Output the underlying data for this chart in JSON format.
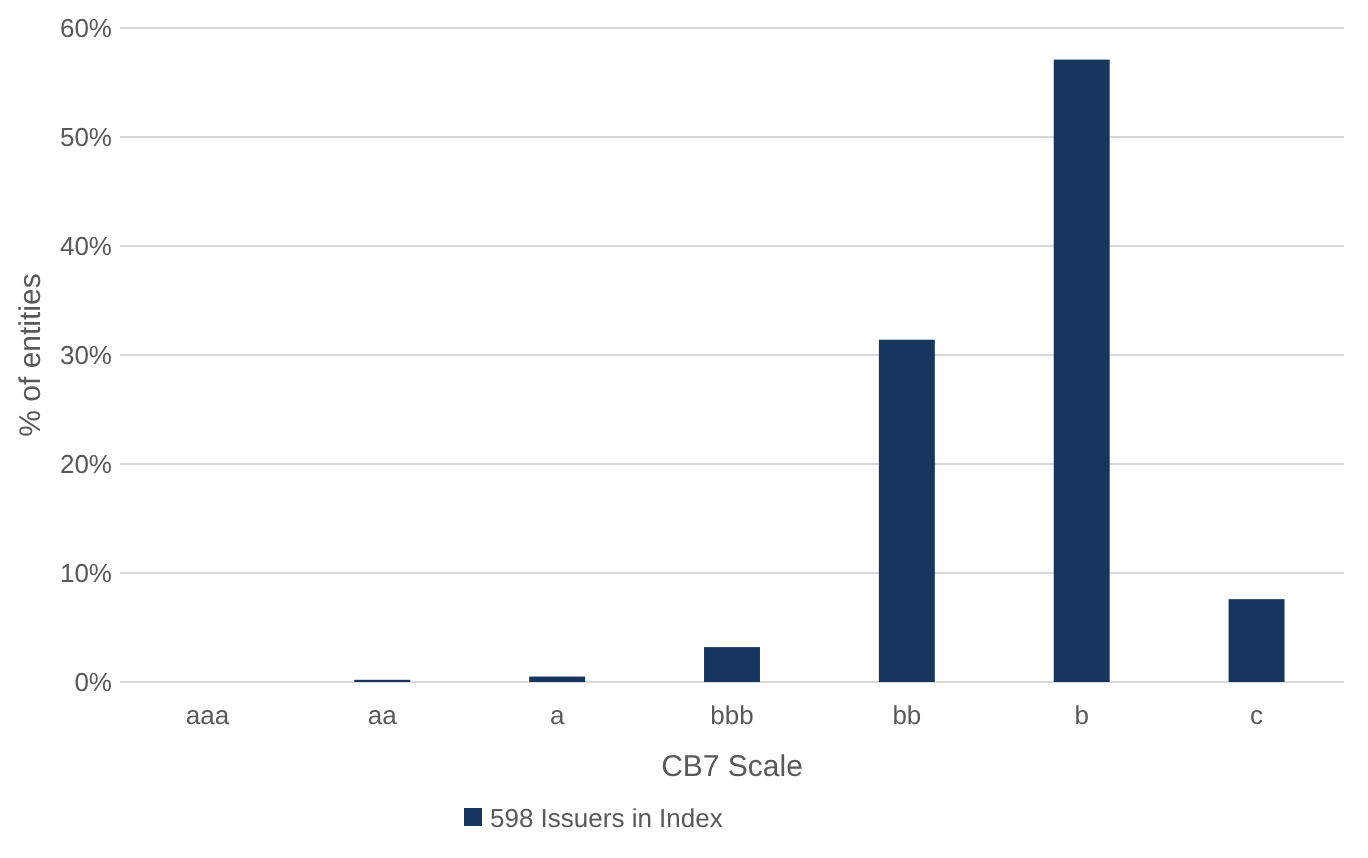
{
  "chart_data": {
    "type": "bar",
    "xlabel": "CB7 Scale",
    "ylabel": "% of entities",
    "categories": [
      "aaa",
      "aa",
      "a",
      "bbb",
      "bb",
      "b",
      "c"
    ],
    "series": [
      {
        "name": "598 Issuers in Index",
        "color": "#17365d",
        "values": [
          0,
          0.2,
          0.5,
          3.2,
          31.4,
          57.1,
          7.6
        ]
      }
    ],
    "ylim": [
      0,
      60
    ],
    "yticks": [
      {
        "value": 0,
        "label": "0%"
      },
      {
        "value": 10,
        "label": "10%"
      },
      {
        "value": 20,
        "label": "20%"
      },
      {
        "value": 30,
        "label": "30%"
      },
      {
        "value": 40,
        "label": "40%"
      },
      {
        "value": 50,
        "label": "50%"
      },
      {
        "value": 60,
        "label": "60%"
      }
    ],
    "grid": "y",
    "legend": "bottom"
  }
}
